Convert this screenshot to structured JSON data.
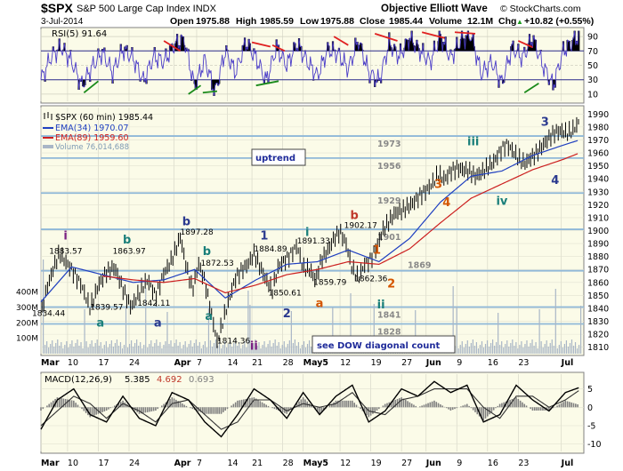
{
  "header": {
    "symbol": "$SPX",
    "description": "S&P 500 Large Cap Index  INDX",
    "brand": "Objective Elliott Wave",
    "watermark": "© StockCharts.com",
    "date": "3-Jul-2014",
    "open_label": "Open",
    "open": "1975.88",
    "high_label": "High",
    "high": "1985.59",
    "low_label": "Low",
    "low": "1975.88",
    "close_label": "Close",
    "close": "1985.44",
    "volume_label": "Volume",
    "volume": "12.1M",
    "chg_label": "Chg",
    "chg": "+10.82 (+0.55%)",
    "chg_arrow": "▲"
  },
  "rsi_panel": {
    "legend": "RSI(5) 91.64",
    "ticks": [
      "90",
      "70",
      "50",
      "30",
      "10"
    ],
    "tick_values": [
      90,
      70,
      50,
      30,
      10
    ],
    "ylim": [
      0,
      100
    ]
  },
  "price_panel": {
    "legend_title": "$SPX (60 min) 1985.44",
    "ema34": "EMA(34) 1970.07",
    "ema89": "EMA(89) 1959.60",
    "volume": "Volume 76,014,688",
    "ticks": [
      "1990",
      "1980",
      "1970",
      "1960",
      "1950",
      "1940",
      "1930",
      "1920",
      "1910",
      "1900",
      "1890",
      "1880",
      "1870",
      "1860",
      "1850",
      "1840",
      "1830",
      "1820",
      "1810"
    ],
    "tick_values": [
      1990,
      1980,
      1970,
      1960,
      1950,
      1940,
      1930,
      1920,
      1910,
      1900,
      1890,
      1880,
      1870,
      1860,
      1850,
      1840,
      1830,
      1820,
      1810
    ],
    "vol_ticks": [
      "400M",
      "300M",
      "200M",
      "100M"
    ],
    "vol_tick_values": [
      400,
      300,
      200,
      100
    ],
    "ylim": [
      1805,
      1995
    ],
    "support_levels": [
      {
        "value": 1973,
        "label": "1973"
      },
      {
        "value": 1956,
        "label": "1956"
      },
      {
        "value": 1929,
        "label": "1929"
      },
      {
        "value": 1901,
        "label": "1901"
      },
      {
        "value": 1869,
        "label": "1869"
      },
      {
        "value": 1841,
        "label": "1841"
      },
      {
        "value": 1828,
        "label": "1828"
      }
    ],
    "uptrend_box": "uptrend",
    "dow_box": "see DOW diagonal count",
    "price_labels": [
      {
        "text": "1883.57",
        "x": 0.4,
        "y": 1882
      },
      {
        "text": "1863.97",
        "x": 3.5,
        "y": 1882
      },
      {
        "text": "1897.28",
        "x": 6.8,
        "y": 1897
      },
      {
        "text": "1872.53",
        "x": 7.8,
        "y": 1873
      },
      {
        "text": "1884.89",
        "x": 10.4,
        "y": 1884
      },
      {
        "text": "1891.33",
        "x": 12.5,
        "y": 1890
      },
      {
        "text": "1902.17",
        "x": 14.8,
        "y": 1902
      },
      {
        "text": "1834.44",
        "x": -0.5,
        "y": 1834
      },
      {
        "text": "1839.57",
        "x": 2.4,
        "y": 1839
      },
      {
        "text": "1842.11",
        "x": 4.7,
        "y": 1842
      },
      {
        "text": "1814.36",
        "x": 8.6,
        "y": 1813
      },
      {
        "text": "1850.61",
        "x": 11.1,
        "y": 1850
      },
      {
        "text": "1859.79",
        "x": 13.3,
        "y": 1858
      },
      {
        "text": "1862.36",
        "x": 15.3,
        "y": 1861
      }
    ],
    "wave_labels": [
      {
        "text": "i",
        "x": 1.2,
        "y": 1893,
        "color": "#7b2182"
      },
      {
        "text": "b",
        "x": 4.2,
        "y": 1890,
        "color": "#1a7f7a"
      },
      {
        "text": "b",
        "x": 7.1,
        "y": 1904,
        "color": "#2b3a8f"
      },
      {
        "text": "b",
        "x": 8.1,
        "y": 1881,
        "color": "#1a7f7a"
      },
      {
        "text": "1",
        "x": 10.9,
        "y": 1893,
        "color": "#2b3a8f"
      },
      {
        "text": "i",
        "x": 13.0,
        "y": 1896,
        "color": "#1a7f7a"
      },
      {
        "text": "b",
        "x": 15.3,
        "y": 1909,
        "color": "#c0392b"
      },
      {
        "text": "1",
        "x": 16.4,
        "y": 1882,
        "color": "#d45500"
      },
      {
        "text": "2",
        "x": 17.1,
        "y": 1856,
        "color": "#d45500"
      },
      {
        "text": "ii",
        "x": 16.6,
        "y": 1840,
        "color": "#1a7f7a"
      },
      {
        "text": "a",
        "x": 2.9,
        "y": 1826,
        "color": "#1a7f7a"
      },
      {
        "text": "a",
        "x": 5.7,
        "y": 1826,
        "color": "#2b3a8f"
      },
      {
        "text": "a",
        "x": 8.2,
        "y": 1831,
        "color": "#1a7f7a"
      },
      {
        "text": "ii",
        "x": 10.4,
        "y": 1808,
        "color": "#7b2182"
      },
      {
        "text": "2",
        "x": 12.0,
        "y": 1833,
        "color": "#2b3a8f"
      },
      {
        "text": "a",
        "x": 13.6,
        "y": 1841,
        "color": "#d45500"
      },
      {
        "text": "3",
        "x": 19.4,
        "y": 1933,
        "color": "#d45500"
      },
      {
        "text": "4",
        "x": 19.8,
        "y": 1919,
        "color": "#d45500"
      },
      {
        "text": "iii",
        "x": 21.1,
        "y": 1966,
        "color": "#1a7f7a"
      },
      {
        "text": "iv",
        "x": 22.5,
        "y": 1920,
        "color": "#1a7f7a"
      },
      {
        "text": "3",
        "x": 24.6,
        "y": 1981,
        "color": "#2b3a8f"
      },
      {
        "text": "4",
        "x": 25.1,
        "y": 1936,
        "color": "#2b3a8f"
      }
    ]
  },
  "macd_panel": {
    "legend_name": "MACD(12,26,9)",
    "macd": "5.385",
    "signal": "4.692",
    "hist": "0.693",
    "ticks": [
      "5",
      "0",
      "-5",
      "-10"
    ],
    "tick_values": [
      5,
      0,
      -5,
      -10
    ],
    "ylim": [
      -12,
      9
    ]
  },
  "x_axis": {
    "labels": [
      {
        "text": "Mar",
        "x": 0
      },
      {
        "text": "10",
        "x": 1.3
      },
      {
        "text": "17",
        "x": 2.8
      },
      {
        "text": "24",
        "x": 4.3
      },
      {
        "text": "Apr",
        "x": 6.5
      },
      {
        "text": "7",
        "x": 7.6
      },
      {
        "text": "14",
        "x": 9.1
      },
      {
        "text": "21",
        "x": 10.3
      },
      {
        "text": "28",
        "x": 11.8
      },
      {
        "text": "May5",
        "x": 12.8
      },
      {
        "text": "12",
        "x": 14.6
      },
      {
        "text": "19",
        "x": 16.1
      },
      {
        "text": "27",
        "x": 17.6
      },
      {
        "text": "Jun",
        "x": 18.8
      },
      {
        "text": "9",
        "x": 20.3
      },
      {
        "text": "16",
        "x": 21.8
      },
      {
        "text": "23",
        "x": 23.3
      },
      {
        "text": "Jul",
        "x": 25.4
      }
    ],
    "xlim": [
      0,
      26.5
    ]
  },
  "colors": {
    "panel_bg": "#fbfbe8",
    "price": "#000000",
    "ema34": "#2040c0",
    "ema89": "#cc1f1f",
    "rsi_line": "#4a3cc8",
    "level_line": "#8fb8d8",
    "volume": "#a9b6c6",
    "macd_fill": "#7f7f7f"
  },
  "chart_data": [
    {
      "type": "line",
      "title": "$SPX (60 min) 1985.44",
      "xlabel": "",
      "ylabel": "",
      "x_units": "trading days from Mar 3 2014",
      "xlim": [
        0,
        26.5
      ],
      "ylim": [
        1805,
        1995
      ],
      "series": [
        {
          "name": "$SPX (60 min) 1985.44",
          "color": "#000000",
          "x": [
            0,
            0.3,
            0.6,
            0.9,
            1.2,
            1.6,
            2.0,
            2.4,
            2.8,
            3.2,
            3.6,
            4.0,
            4.4,
            4.8,
            5.2,
            5.6,
            6.0,
            6.4,
            6.8,
            7.1,
            7.4,
            7.7,
            8.0,
            8.3,
            8.6,
            8.9,
            9.2,
            9.5,
            9.8,
            10.1,
            10.4,
            10.7,
            11.0,
            11.3,
            11.6,
            11.9,
            12.2,
            12.5,
            12.8,
            13.1,
            13.4,
            13.7,
            14.0,
            14.3,
            14.6,
            14.9,
            15.2,
            15.5,
            15.8,
            16.1,
            16.4,
            16.7,
            17.0,
            17.3,
            17.6,
            17.9,
            18.2,
            18.5,
            18.8,
            19.1,
            19.4,
            19.7,
            20.0,
            20.3,
            20.6,
            20.9,
            21.2,
            21.5,
            21.8,
            22.1,
            22.4,
            22.7,
            23.0,
            23.3,
            23.6,
            23.9,
            24.2,
            24.5,
            24.8,
            25.1,
            25.4,
            25.7,
            26.0,
            26.3
          ],
          "values": [
            1836,
            1858,
            1872,
            1882,
            1874,
            1866,
            1858,
            1842,
            1858,
            1866,
            1870,
            1856,
            1843,
            1852,
            1860,
            1848,
            1868,
            1880,
            1895,
            1870,
            1852,
            1874,
            1862,
            1840,
            1815,
            1830,
            1846,
            1862,
            1870,
            1876,
            1884,
            1872,
            1860,
            1852,
            1872,
            1878,
            1884,
            1890,
            1870,
            1868,
            1860,
            1878,
            1886,
            1896,
            1900,
            1888,
            1868,
            1862,
            1875,
            1880,
            1890,
            1900,
            1905,
            1912,
            1915,
            1920,
            1924,
            1928,
            1930,
            1934,
            1942,
            1940,
            1948,
            1950,
            1947,
            1944,
            1940,
            1944,
            1950,
            1955,
            1962,
            1966,
            1960,
            1954,
            1952,
            1958,
            1962,
            1966,
            1970,
            1974,
            1976,
            1976,
            1980,
            1986
          ]
        },
        {
          "name": "EMA(34) 1970.07",
          "color": "#2040c0",
          "x": [
            0,
            1.5,
            3,
            4.5,
            6,
            7.5,
            9,
            10.5,
            12,
            13.5,
            15,
            16.5,
            18,
            19.5,
            21,
            22.5,
            24,
            25.5,
            26.3
          ],
          "values": [
            1845,
            1872,
            1866,
            1860,
            1862,
            1870,
            1848,
            1862,
            1874,
            1876,
            1885,
            1876,
            1894,
            1922,
            1942,
            1946,
            1958,
            1966,
            1970
          ]
        },
        {
          "name": "EMA(89) 1959.60",
          "color": "#cc1f1f",
          "x": [
            3,
            4.5,
            6,
            7.5,
            9,
            10.5,
            12,
            13.5,
            15,
            16.5,
            18,
            19.5,
            21,
            22.5,
            24,
            25.5,
            26.3
          ],
          "values": [
            1865,
            1862,
            1860,
            1863,
            1852,
            1858,
            1866,
            1870,
            1876,
            1874,
            1886,
            1906,
            1925,
            1936,
            1947,
            1955,
            1960
          ]
        }
      ]
    },
    {
      "type": "line",
      "title": "RSI(5) 91.64",
      "xlabel": "",
      "ylabel": "",
      "xlim": [
        0,
        26.5
      ],
      "ylim": [
        0,
        100
      ],
      "series": [
        {
          "name": "RSI(5) 91.64",
          "color": "#4a3cc8",
          "x": [
            0,
            0.5,
            1,
            1.5,
            2,
            2.5,
            3,
            3.5,
            4,
            4.5,
            5,
            5.5,
            6,
            6.5,
            7,
            7.5,
            8,
            8.5,
            9,
            9.5,
            10,
            10.5,
            11,
            11.5,
            12,
            12.5,
            13,
            13.5,
            14,
            14.5,
            15,
            15.5,
            16,
            16.5,
            17,
            17.5,
            18,
            18.5,
            19,
            19.5,
            20,
            20.5,
            21,
            21.5,
            22,
            22.5,
            23,
            23.5,
            24,
            24.5,
            25,
            25.5,
            26,
            26.3
          ],
          "values": [
            30,
            62,
            75,
            55,
            22,
            48,
            68,
            40,
            72,
            60,
            28,
            62,
            55,
            78,
            85,
            20,
            58,
            12,
            70,
            40,
            82,
            60,
            28,
            75,
            50,
            80,
            55,
            35,
            72,
            66,
            45,
            85,
            40,
            28,
            80,
            62,
            88,
            70,
            55,
            90,
            60,
            85,
            92,
            38,
            55,
            25,
            75,
            60,
            88,
            50,
            22,
            70,
            84,
            92
          ]
        }
      ]
    },
    {
      "type": "line",
      "title": "MACD(12,26,9) 5.385, 4.692, 0.693",
      "xlabel": "",
      "ylabel": "",
      "xlim": [
        0,
        26.5
      ],
      "ylim": [
        -12,
        9
      ],
      "series": [
        {
          "name": "MACD(12,26,9) 5.385",
          "color": "#000000",
          "x": [
            0,
            0.8,
            1.6,
            2.4,
            3.2,
            4.0,
            4.8,
            5.6,
            6.4,
            7.2,
            8.0,
            8.8,
            9.6,
            10.4,
            11.2,
            12.0,
            12.8,
            13.6,
            14.4,
            15.2,
            16.0,
            16.8,
            17.6,
            18.4,
            19.2,
            20.0,
            20.8,
            21.6,
            22.4,
            23.2,
            24.0,
            24.8,
            25.6,
            26.3
          ],
          "values": [
            -6,
            2,
            5,
            -2,
            -4,
            3,
            -3,
            -5,
            4,
            2,
            -4,
            -8,
            -2,
            5,
            2,
            -3,
            4,
            -2,
            3,
            6,
            -4,
            -1,
            5,
            3,
            7,
            4,
            6,
            -4,
            -2,
            6,
            2,
            -1,
            4,
            5.4
          ]
        },
        {
          "name": "4.692",
          "color": "#7f7f7f",
          "x": [
            0,
            0.8,
            1.6,
            2.4,
            3.2,
            4.0,
            4.8,
            5.6,
            6.4,
            7.2,
            8.0,
            8.8,
            9.6,
            10.4,
            11.2,
            12.0,
            12.8,
            13.6,
            14.4,
            15.2,
            16.0,
            16.8,
            17.6,
            18.4,
            19.2,
            20.0,
            20.8,
            21.6,
            22.4,
            23.2,
            24.0,
            24.8,
            25.6,
            26.3
          ],
          "values": [
            -5,
            -1,
            3,
            1,
            -3,
            1,
            -1,
            -4,
            1,
            2,
            -2,
            -6,
            -4,
            2,
            2,
            -1,
            1,
            0,
            1,
            4,
            -1,
            -2,
            2,
            3,
            5,
            5,
            5,
            0,
            -3,
            3,
            3,
            0,
            2,
            4.7
          ]
        }
      ],
      "histogram": {
        "name": "0.693",
        "color": "#7f7f7f"
      }
    }
  ]
}
